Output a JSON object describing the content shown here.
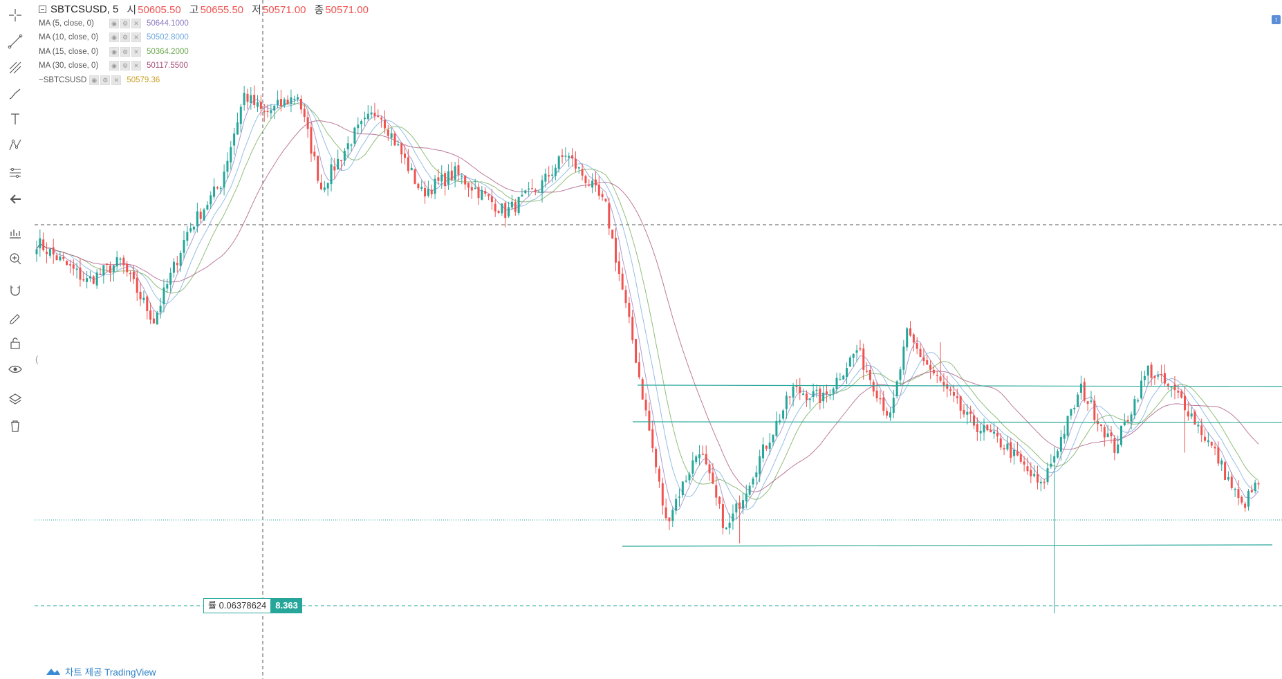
{
  "legend": {
    "symbol": "SBTCSUSD, 5",
    "ohlc": [
      {
        "label": "시",
        "value": "50605.50"
      },
      {
        "label": "고",
        "value": "50655.50"
      },
      {
        "label": "저",
        "value": "50571.00"
      },
      {
        "label": "종",
        "value": "50571.00"
      }
    ],
    "indicators": [
      {
        "name": "MA (5, close, 0)",
        "value": "50644.1000",
        "color": "#8e7cc3"
      },
      {
        "name": "MA (10, close, 0)",
        "value": "50502.8000",
        "color": "#6fa8dc"
      },
      {
        "name": "MA (15, close, 0)",
        "value": "50364.2000",
        "color": "#6aa84f"
      },
      {
        "name": "MA (30, close, 0)",
        "value": "50117.5500",
        "color": "#a64d79"
      },
      {
        "name": "~SBTCSUSD",
        "value": "50579.36",
        "color": "#c9a227"
      }
    ]
  },
  "ratio_label": {
    "text": "률 0.06378624",
    "value": "8.363"
  },
  "attribution": "차트 제공 TradingView",
  "colors": {
    "up": "#26a69a",
    "down": "#ef5350",
    "hline": "#26a69a",
    "crosshair": "#555555"
  },
  "toolbar": [
    "crosshair-icon",
    "trend-line-icon",
    "pitchfork-icon",
    "brush-icon",
    "text-icon",
    "pattern-icon",
    "measure-icon",
    "back-arrow-icon",
    "forecast-icon",
    "zoom-icon",
    "magnet-icon",
    "lock-drawing-icon",
    "unlock-icon",
    "eye-icon",
    "layers-icon",
    "trash-icon"
  ],
  "chart_data": {
    "type": "candlestick",
    "symbol": "SBTCSUSD",
    "timeframe": "5",
    "last_candle": {
      "open": 50605.5,
      "high": 50655.5,
      "low": 50571.0,
      "close": 50571.0
    },
    "moving_averages": [
      {
        "name": "MA (5, close, 0)",
        "period": 5,
        "last_value": 50644.1
      },
      {
        "name": "MA (10, close, 0)",
        "period": 10,
        "last_value": 50502.8
      },
      {
        "name": "MA (15, close, 0)",
        "period": 15,
        "last_value": 50364.2
      },
      {
        "name": "MA (30, close, 0)",
        "period": 30,
        "last_value": 50117.55
      }
    ],
    "price_segments": [
      [
        0,
        0.62
      ],
      [
        15,
        0.54
      ],
      [
        25,
        0.58
      ],
      [
        35,
        0.46
      ],
      [
        45,
        0.64
      ],
      [
        55,
        0.74
      ],
      [
        62,
        0.92
      ],
      [
        68,
        0.88
      ],
      [
        78,
        0.92
      ],
      [
        85,
        0.73
      ],
      [
        95,
        0.84
      ],
      [
        102,
        0.89
      ],
      [
        115,
        0.72
      ],
      [
        125,
        0.76
      ],
      [
        140,
        0.68
      ],
      [
        150,
        0.73
      ],
      [
        158,
        0.8
      ],
      [
        165,
        0.74
      ],
      [
        170,
        0.69
      ],
      [
        178,
        0.42
      ],
      [
        188,
        0.05
      ],
      [
        198,
        0.2
      ],
      [
        206,
        0.03
      ],
      [
        216,
        0.18
      ],
      [
        226,
        0.32
      ],
      [
        235,
        0.3
      ],
      [
        245,
        0.4
      ],
      [
        255,
        0.26
      ],
      [
        260,
        0.43
      ],
      [
        268,
        0.35
      ],
      [
        278,
        0.26
      ],
      [
        290,
        0.2
      ],
      [
        300,
        0.12
      ],
      [
        312,
        0.32
      ],
      [
        322,
        0.2
      ],
      [
        332,
        0.36
      ],
      [
        342,
        0.3
      ],
      [
        352,
        0.19
      ],
      [
        360,
        0.08
      ],
      [
        365,
        0.13
      ]
    ]
  }
}
